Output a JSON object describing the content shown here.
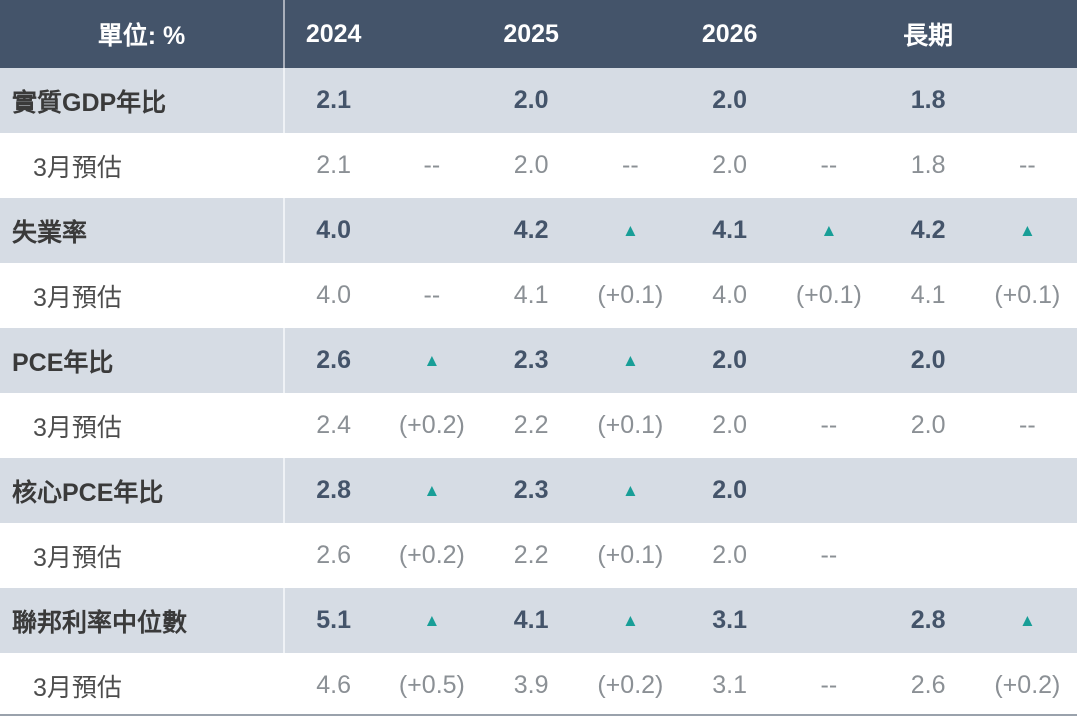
{
  "chart_data": {
    "type": "table",
    "unit_label": "單位: %",
    "columns": [
      "2024",
      "2025",
      "2026",
      "長期"
    ],
    "rows": [
      {
        "kind": "main",
        "label": "實質GDP年比",
        "values": [
          "2.1",
          "2.0",
          "2.0",
          "1.8"
        ],
        "changes": [
          "",
          "",
          "",
          ""
        ]
      },
      {
        "kind": "sub",
        "label": "3月預估",
        "values": [
          "2.1",
          "2.0",
          "2.0",
          "1.8"
        ],
        "changes": [
          "--",
          "--",
          "--",
          "--"
        ]
      },
      {
        "kind": "main",
        "label": "失業率",
        "values": [
          "4.0",
          "4.2",
          "4.1",
          "4.2"
        ],
        "changes": [
          "",
          "up",
          "up",
          "up"
        ]
      },
      {
        "kind": "sub",
        "label": "3月預估",
        "values": [
          "4.0",
          "4.1",
          "4.0",
          "4.1"
        ],
        "changes": [
          "--",
          "(+0.1)",
          "(+0.1)",
          "(+0.1)"
        ]
      },
      {
        "kind": "main",
        "label": "PCE年比",
        "values": [
          "2.6",
          "2.3",
          "2.0",
          "2.0"
        ],
        "changes": [
          "up",
          "up",
          "",
          ""
        ]
      },
      {
        "kind": "sub",
        "label": "3月預估",
        "values": [
          "2.4",
          "2.2",
          "2.0",
          "2.0"
        ],
        "changes": [
          "(+0.2)",
          "(+0.1)",
          "--",
          "--"
        ]
      },
      {
        "kind": "main",
        "label": "核心PCE年比",
        "values": [
          "2.8",
          "2.3",
          "2.0",
          ""
        ],
        "changes": [
          "up",
          "up",
          "",
          ""
        ]
      },
      {
        "kind": "sub",
        "label": "3月預估",
        "values": [
          "2.6",
          "2.2",
          "2.0",
          ""
        ],
        "changes": [
          "(+0.2)",
          "(+0.1)",
          "--",
          ""
        ]
      },
      {
        "kind": "main",
        "label": "聯邦利率中位數",
        "values": [
          "5.1",
          "4.1",
          "3.1",
          "2.8"
        ],
        "changes": [
          "up",
          "up",
          "",
          "up"
        ]
      },
      {
        "kind": "sub",
        "label": "3月預估",
        "values": [
          "4.6",
          "3.9",
          "3.1",
          "2.6"
        ],
        "changes": [
          "(+0.5)",
          "(+0.2)",
          "--",
          "(+0.2)"
        ]
      }
    ]
  },
  "icons": {
    "up_triangle": "▲"
  },
  "colors": {
    "header_bg": "#44546A",
    "header_text": "#FFFFFF",
    "band_bg": "#D6DCE4",
    "white_bg": "#FFFFFF",
    "value_text": "#44546A",
    "label_text": "#3A3A3A",
    "sub_label_text": "#4D4D4D",
    "sub_value_text": "#8B9095",
    "triangle": "#189E97",
    "header_divider": "#A9AFBB",
    "band_divider": "#EFF2F6",
    "bottom_border": "#9AA2AC"
  }
}
